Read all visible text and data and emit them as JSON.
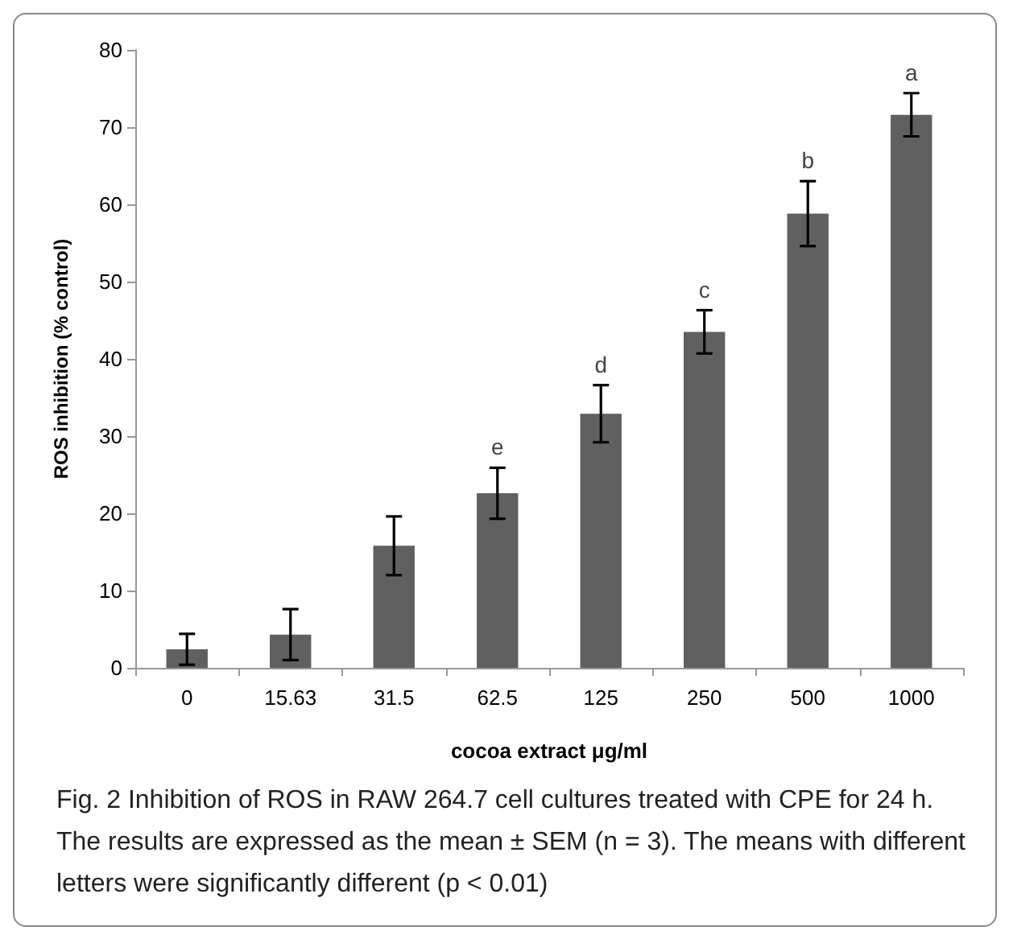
{
  "chart_data": {
    "type": "bar",
    "xlabel": "cocoa extract μg/ml",
    "ylabel": "ROS inhibition (% control)",
    "categories": [
      "0",
      "15.63",
      "31.5",
      "62.5",
      "125",
      "250",
      "500",
      "1000"
    ],
    "values": [
      2.4,
      4.3,
      15.8,
      22.6,
      32.9,
      43.5,
      58.8,
      71.6
    ],
    "errors": [
      2.0,
      3.3,
      3.8,
      3.3,
      3.7,
      2.8,
      4.2,
      2.8
    ],
    "value_labels": [
      null,
      null,
      null,
      "e",
      "d",
      "c",
      "b",
      "a"
    ],
    "color": "#606060",
    "ylim": [
      0,
      80
    ],
    "yticks": [
      0,
      10,
      20,
      30,
      40,
      50,
      60,
      70,
      80
    ],
    "grid": false,
    "annotations": [
      "Fig. 2  Inhibition of ROS in RAW 264.7 cell cultures treated with CPE for 24 h. The results are expressed as the mean ± SEM (n = 3). The means with different letters were significantly different (p < 0.01)"
    ]
  }
}
